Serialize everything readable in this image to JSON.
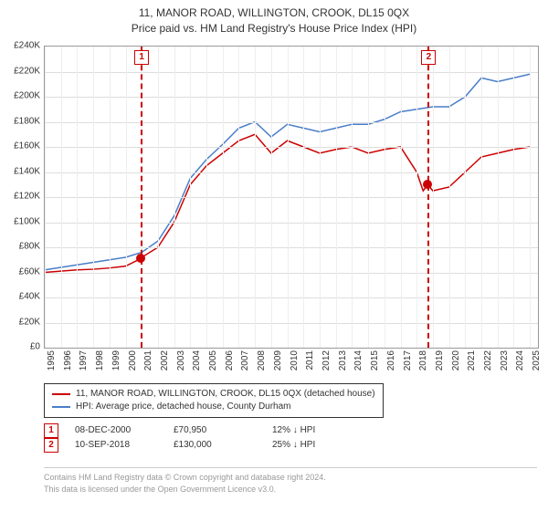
{
  "title": {
    "line1": "11, MANOR ROAD, WILLINGTON, CROOK, DL15 0QX",
    "line2": "Price paid vs. HM Land Registry's House Price Index (HPI)"
  },
  "chart": {
    "type": "line",
    "ylim": [
      0,
      240000
    ],
    "ytick_step": 20000,
    "ylabels": [
      "£0",
      "£20K",
      "£40K",
      "£60K",
      "£80K",
      "£100K",
      "£120K",
      "£140K",
      "£160K",
      "£180K",
      "£200K",
      "£220K",
      "£240K"
    ],
    "xlim": [
      1995,
      2025.5
    ],
    "xlabels": [
      "1995",
      "1996",
      "1997",
      "1998",
      "1999",
      "2000",
      "2001",
      "2002",
      "2003",
      "2004",
      "2005",
      "2006",
      "2007",
      "2008",
      "2009",
      "2010",
      "2011",
      "2012",
      "2013",
      "2014",
      "2015",
      "2016",
      "2017",
      "2018",
      "2019",
      "2020",
      "2021",
      "2022",
      "2023",
      "2024",
      "2025"
    ],
    "background_color": "#ffffff",
    "grid_color": "#dddddd",
    "series": [
      {
        "id": "property",
        "color": "#cc0000",
        "width": 1.5,
        "points": [
          [
            1995,
            60000
          ],
          [
            1996,
            61000
          ],
          [
            1997,
            62000
          ],
          [
            1998,
            62500
          ],
          [
            1999,
            63500
          ],
          [
            2000,
            65000
          ],
          [
            2000.94,
            70950
          ],
          [
            2001,
            72000
          ],
          [
            2002,
            80000
          ],
          [
            2003,
            100000
          ],
          [
            2004,
            130000
          ],
          [
            2005,
            145000
          ],
          [
            2006,
            155000
          ],
          [
            2007,
            165000
          ],
          [
            2008,
            170000
          ],
          [
            2009,
            155000
          ],
          [
            2010,
            165000
          ],
          [
            2011,
            160000
          ],
          [
            2012,
            155000
          ],
          [
            2013,
            158000
          ],
          [
            2014,
            160000
          ],
          [
            2015,
            155000
          ],
          [
            2016,
            158000
          ],
          [
            2017,
            160000
          ],
          [
            2018,
            140000
          ],
          [
            2018.4,
            125000
          ],
          [
            2018.69,
            130000
          ],
          [
            2019,
            125000
          ],
          [
            2020,
            128000
          ],
          [
            2021,
            140000
          ],
          [
            2022,
            152000
          ],
          [
            2023,
            155000
          ],
          [
            2024,
            158000
          ],
          [
            2025,
            160000
          ]
        ]
      },
      {
        "id": "hpi",
        "color": "#4a7ec8",
        "width": 1.5,
        "points": [
          [
            1995,
            62000
          ],
          [
            1996,
            64000
          ],
          [
            1997,
            66000
          ],
          [
            1998,
            68000
          ],
          [
            1999,
            70000
          ],
          [
            2000,
            72000
          ],
          [
            2001,
            76000
          ],
          [
            2002,
            85000
          ],
          [
            2003,
            105000
          ],
          [
            2004,
            135000
          ],
          [
            2005,
            150000
          ],
          [
            2006,
            162000
          ],
          [
            2007,
            175000
          ],
          [
            2008,
            180000
          ],
          [
            2009,
            168000
          ],
          [
            2010,
            178000
          ],
          [
            2011,
            175000
          ],
          [
            2012,
            172000
          ],
          [
            2013,
            175000
          ],
          [
            2014,
            178000
          ],
          [
            2015,
            178000
          ],
          [
            2016,
            182000
          ],
          [
            2017,
            188000
          ],
          [
            2018,
            190000
          ],
          [
            2019,
            192000
          ],
          [
            2020,
            192000
          ],
          [
            2021,
            200000
          ],
          [
            2022,
            215000
          ],
          [
            2023,
            212000
          ],
          [
            2024,
            215000
          ],
          [
            2025,
            218000
          ]
        ]
      }
    ],
    "markers": [
      {
        "id": "1",
        "x": 2000.94,
        "y": 70950,
        "color": "#cc0000"
      },
      {
        "id": "2",
        "x": 2018.69,
        "y": 130000,
        "color": "#cc0000"
      }
    ]
  },
  "legend": {
    "items": [
      {
        "color": "#cc0000",
        "label": "11, MANOR ROAD, WILLINGTON, CROOK, DL15 0QX (detached house)"
      },
      {
        "color": "#4a7ec8",
        "label": "HPI: Average price, detached house, County Durham"
      }
    ]
  },
  "sales": [
    {
      "id": "1",
      "color": "#cc0000",
      "date": "08-DEC-2000",
      "price": "£70,950",
      "diff": "12% ↓ HPI"
    },
    {
      "id": "2",
      "color": "#cc0000",
      "date": "10-SEP-2018",
      "price": "£130,000",
      "diff": "25% ↓ HPI"
    }
  ],
  "footer": {
    "line1": "Contains HM Land Registry data © Crown copyright and database right 2024.",
    "line2": "This data is licensed under the Open Government Licence v3.0."
  }
}
